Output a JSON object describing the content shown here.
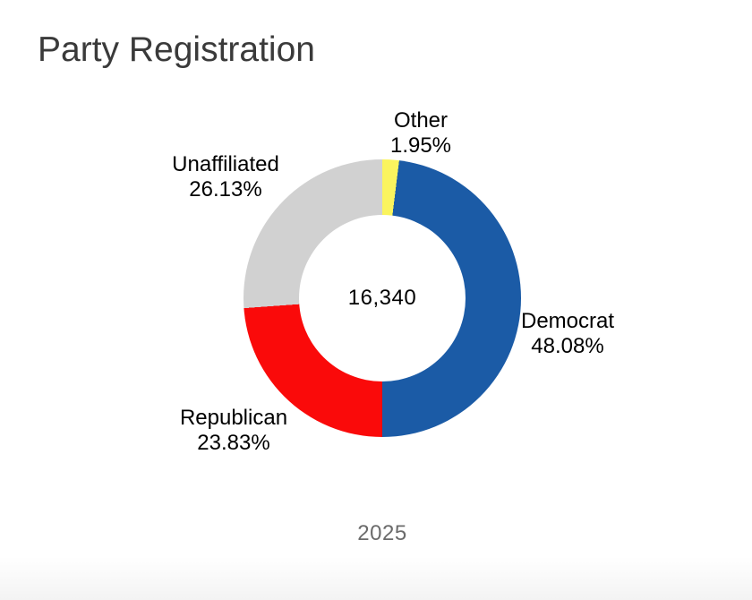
{
  "page": {
    "title": "Party Registration",
    "year_caption": "2025"
  },
  "chart_data": {
    "type": "pie",
    "subtype": "donut",
    "title": "Party Registration",
    "center_label": "16,340",
    "total": 16340,
    "segments": [
      {
        "label": "Democrat",
        "percent": 48.08,
        "display": "48.08%",
        "color": "#1b5ba6"
      },
      {
        "label": "Republican",
        "percent": 23.83,
        "display": "23.83%",
        "color": "#fa0a0a"
      },
      {
        "label": "Unaffiliated",
        "percent": 26.13,
        "display": "26.13%",
        "color": "#d1d1d1"
      },
      {
        "label": "Other",
        "percent": 1.95,
        "display": "1.95%",
        "color": "#faf45e"
      }
    ],
    "layout": {
      "start_angle_deg": 7,
      "direction": "clockwise",
      "inner_radius_ratio": 0.6,
      "legend": "off",
      "labels": "outside",
      "label_text_color": "#000000",
      "caption_color": "#6b6b6b"
    }
  }
}
